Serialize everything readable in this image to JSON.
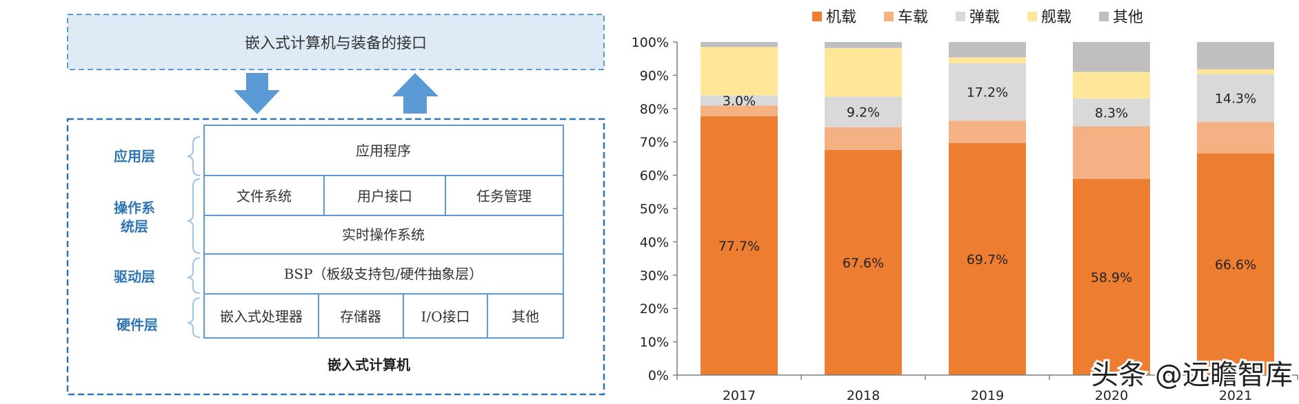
{
  "diagram": {
    "interface_title": "嵌入式计算机与装备的接口",
    "system_caption": "嵌入式计算机",
    "layers": {
      "application": "应用层",
      "os_line1": "操作系",
      "os_line2": "统层",
      "driver": "驱动层",
      "hardware": "硬件层"
    },
    "cells": {
      "app_program": "应用程序",
      "file_system": "文件系统",
      "user_interface": "用户接口",
      "task_management": "任务管理",
      "rtos": "实时操作系统",
      "bsp": "BSP（板级支持包/硬件抽象层）",
      "embedded_processor": "嵌入式处理器",
      "memory": "存储器",
      "io_interface": "I/O接口",
      "other": "其他"
    },
    "colors": {
      "accent": "#5b9bd5",
      "fill": "#deebf7",
      "text_blue": "#2e75b6"
    }
  },
  "chart_data": {
    "type": "bar",
    "stacked": true,
    "percent": true,
    "categories": [
      "2017",
      "2018",
      "2019",
      "2020",
      "2021"
    ],
    "series": [
      {
        "name": "机载",
        "color": "#ed7d31",
        "values": [
          77.7,
          67.6,
          69.7,
          58.9,
          66.6
        ]
      },
      {
        "name": "车载",
        "color": "#f4b183",
        "values": [
          3.2,
          6.8,
          6.7,
          15.8,
          9.4
        ]
      },
      {
        "name": "弹载",
        "color": "#d9d9d9",
        "values": [
          3.0,
          9.2,
          17.2,
          8.3,
          14.3
        ]
      },
      {
        "name": "舰载",
        "color": "#ffe699",
        "values": [
          14.6,
          14.6,
          1.8,
          8.0,
          1.5
        ]
      },
      {
        "name": "其他",
        "color": "#bfbfbf",
        "values": [
          1.5,
          1.8,
          4.6,
          9.0,
          8.2
        ]
      }
    ],
    "data_labels": [
      {
        "series": 0,
        "index": 0,
        "text": "77.7%"
      },
      {
        "series": 0,
        "index": 1,
        "text": "67.6%"
      },
      {
        "series": 0,
        "index": 2,
        "text": "69.7%"
      },
      {
        "series": 0,
        "index": 3,
        "text": "58.9%"
      },
      {
        "series": 0,
        "index": 4,
        "text": "66.6%"
      },
      {
        "series": 2,
        "index": 0,
        "text": "3.0%"
      },
      {
        "series": 2,
        "index": 1,
        "text": "9.2%"
      },
      {
        "series": 2,
        "index": 2,
        "text": "17.2%"
      },
      {
        "series": 2,
        "index": 3,
        "text": "8.3%"
      },
      {
        "series": 2,
        "index": 4,
        "text": "14.3%"
      }
    ],
    "yticks": [
      "0%",
      "10%",
      "20%",
      "30%",
      "40%",
      "50%",
      "60%",
      "70%",
      "80%",
      "90%",
      "100%"
    ],
    "ylim": [
      0,
      100
    ],
    "legend_position": "top",
    "grid": false
  },
  "watermark": "头条 @远瞻智库"
}
